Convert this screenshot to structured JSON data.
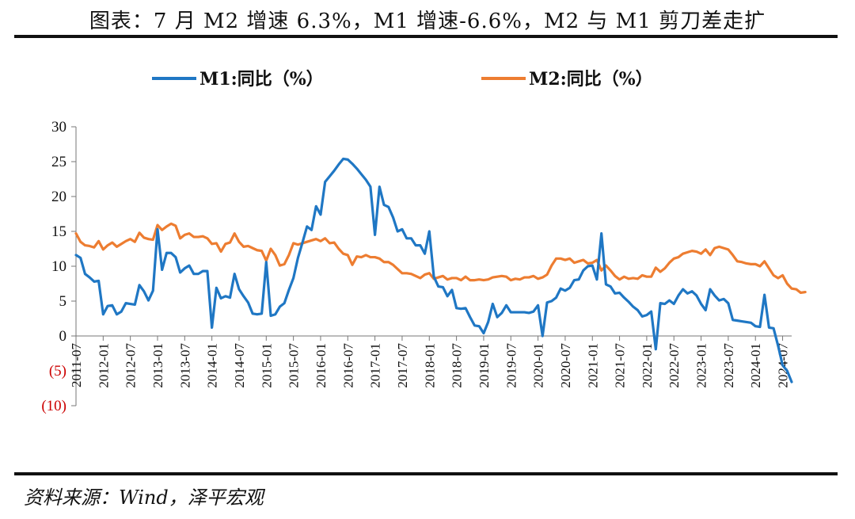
{
  "header": {
    "title": "图表：7 月 M2 增速 6.3%，M1 增速-6.6%，M2 与 M1 剪刀差走扩"
  },
  "footer": {
    "source": "资料来源：Wind，泽平宏观"
  },
  "chart_data": {
    "type": "line",
    "title": "",
    "xlabel": "",
    "ylabel": "",
    "ylim": [
      -10,
      30
    ],
    "yticks": [
      {
        "value": 30,
        "label": "30"
      },
      {
        "value": 25,
        "label": "25"
      },
      {
        "value": 20,
        "label": "20"
      },
      {
        "value": 15,
        "label": "15"
      },
      {
        "value": 10,
        "label": "10"
      },
      {
        "value": 5,
        "label": "5"
      },
      {
        "value": 0,
        "label": "0"
      },
      {
        "value": -5,
        "label": "(5)"
      },
      {
        "value": -10,
        "label": "(10)"
      }
    ],
    "x_start": "2011-07",
    "xticks": [
      "2011-07",
      "2012-01",
      "2012-07",
      "2013-01",
      "2013-07",
      "2014-01",
      "2014-07",
      "2015-01",
      "2015-07",
      "2016-01",
      "2016-07",
      "2017-01",
      "2017-07",
      "2018-01",
      "2018-07",
      "2019-01",
      "2019-07",
      "2020-01",
      "2020-07",
      "2021-01",
      "2021-07",
      "2022-01",
      "2022-07",
      "2023-01",
      "2023-07",
      "2024-01",
      "2024-07"
    ],
    "legend_position": "top",
    "grid": false,
    "series": [
      {
        "name": "M1:同比（%）",
        "color": "#1f77c4",
        "values": [
          11.6,
          11.2,
          8.9,
          8.4,
          7.8,
          7.9,
          3.1,
          4.3,
          4.4,
          3.1,
          3.5,
          4.7,
          4.6,
          4.5,
          7.3,
          6.4,
          5.1,
          6.5,
          15.3,
          9.5,
          11.9,
          11.9,
          11.3,
          9.1,
          9.7,
          10.1,
          8.9,
          8.9,
          9.3,
          9.3,
          1.2,
          6.9,
          5.4,
          5.7,
          5.5,
          8.9,
          6.7,
          5.7,
          4.8,
          3.2,
          3.1,
          3.2,
          10.6,
          2.9,
          3.1,
          4.2,
          4.7,
          6.6,
          8.3,
          11.2,
          13.4,
          15.7,
          15.2,
          18.6,
          17.4,
          22.1,
          22.9,
          23.7,
          24.6,
          25.4,
          25.3,
          24.7,
          24.0,
          23.2,
          22.4,
          21.4,
          14.5,
          21.4,
          18.8,
          18.5,
          17.0,
          15.0,
          15.3,
          14.0,
          14.0,
          13.0,
          13.0,
          11.8,
          15.0,
          8.5,
          7.1,
          7.0,
          5.7,
          6.6,
          4.0,
          3.9,
          4.0,
          2.7,
          1.5,
          1.4,
          0.4,
          2.0,
          4.6,
          2.7,
          3.3,
          4.4,
          3.4,
          3.4,
          3.4,
          3.4,
          3.3,
          3.5,
          4.4,
          0.0,
          4.8,
          5.0,
          5.5,
          6.8,
          6.5,
          6.9,
          8.0,
          8.1,
          9.4,
          10.0,
          10.1,
          8.1,
          14.7,
          7.4,
          7.1,
          6.1,
          6.2,
          5.5,
          4.9,
          4.2,
          3.7,
          2.8,
          3.0,
          3.5,
          -1.9,
          4.7,
          4.6,
          5.1,
          4.6,
          5.8,
          6.7,
          6.1,
          6.4,
          5.8,
          4.6,
          3.7,
          6.7,
          5.8,
          5.1,
          5.3,
          4.7,
          2.3,
          2.2,
          2.1,
          2.0,
          1.9,
          1.4,
          1.3,
          5.9,
          1.2,
          1.1,
          -1.4,
          -4.2,
          -5.0,
          -6.6
        ]
      },
      {
        "name": "M2:同比（%）",
        "color": "#ed7d31",
        "values": [
          14.7,
          13.5,
          13.0,
          12.9,
          12.7,
          13.6,
          12.4,
          13.0,
          13.4,
          12.8,
          13.2,
          13.6,
          13.9,
          13.5,
          14.8,
          14.1,
          13.9,
          13.8,
          15.9,
          15.2,
          15.7,
          16.1,
          15.8,
          14.0,
          14.5,
          14.7,
          14.2,
          14.2,
          14.3,
          14.0,
          13.2,
          13.3,
          12.1,
          13.2,
          13.4,
          14.7,
          13.5,
          12.8,
          12.9,
          12.6,
          12.3,
          12.2,
          10.8,
          12.5,
          11.6,
          10.1,
          10.3,
          11.6,
          13.3,
          13.1,
          13.3,
          13.5,
          13.7,
          13.9,
          13.6,
          14.0,
          13.3,
          13.4,
          12.5,
          11.8,
          11.6,
          10.2,
          11.4,
          11.3,
          11.6,
          11.3,
          11.3,
          11.1,
          10.6,
          10.6,
          10.2,
          9.6,
          9.0,
          9.0,
          8.9,
          8.6,
          8.3,
          8.8,
          9.0,
          8.2,
          8.4,
          8.6,
          8.1,
          8.3,
          8.3,
          8.0,
          8.5,
          8.0,
          8.0,
          8.1,
          8.0,
          8.1,
          8.4,
          8.5,
          8.6,
          8.5,
          8.0,
          8.2,
          8.1,
          8.4,
          8.4,
          8.6,
          8.2,
          8.4,
          8.8,
          10.1,
          11.1,
          11.1,
          10.9,
          11.1,
          10.5,
          10.7,
          10.9,
          10.4,
          10.5,
          10.9,
          9.4,
          10.1,
          9.4,
          8.6,
          8.1,
          8.5,
          8.2,
          8.3,
          8.2,
          8.7,
          8.5,
          8.5,
          9.8,
          9.2,
          9.7,
          10.5,
          11.1,
          11.3,
          11.8,
          12.0,
          12.2,
          12.1,
          11.8,
          12.4,
          11.6,
          12.6,
          12.8,
          12.6,
          12.4,
          11.6,
          10.7,
          10.6,
          10.4,
          10.3,
          10.3,
          10.0,
          10.7,
          9.7,
          8.7,
          8.3,
          8.7,
          7.5,
          6.8,
          6.7,
          6.2,
          6.3
        ]
      }
    ]
  }
}
